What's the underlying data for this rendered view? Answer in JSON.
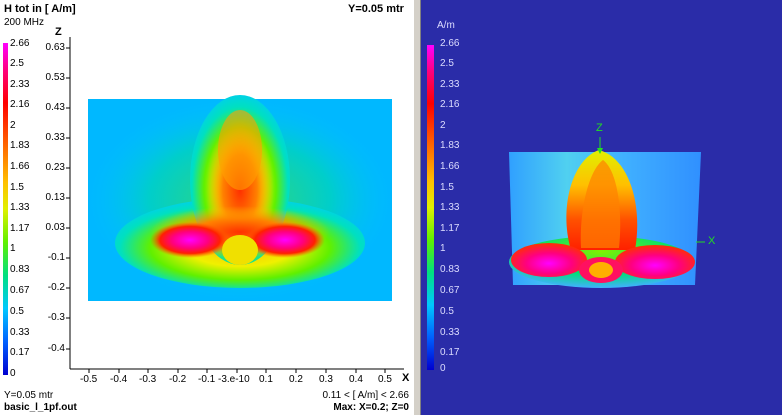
{
  "left_view": {
    "title": "H tot in [ A/m]",
    "frequency": "200 MHz",
    "y_position": "Y=0.05 mtr",
    "z_axis_label": "Z",
    "x_axis_label": "X",
    "z_ticks": [
      "0.63",
      "0.53",
      "0.43",
      "0.33",
      "0.23",
      "0.13",
      "0.03",
      "-0.1",
      "-0.2",
      "-0.3",
      "-0.4"
    ],
    "x_ticks": [
      "-0.5",
      "-0.4",
      "-0.3",
      "-0.2",
      "-0.1",
      "-3.e-10",
      "0.1",
      "0.2",
      "0.3",
      "0.4",
      "0.5"
    ],
    "colorbar_ticks": [
      "2.66",
      "2.5",
      "2.33",
      "2.16",
      "2",
      "1.83",
      "1.66",
      "1.5",
      "1.33",
      "1.17",
      "1",
      "0.83",
      "0.67",
      "0.5",
      "0.33",
      "0.17",
      "0"
    ],
    "footer_y": "Y=0.05 mtr",
    "filename": "basic_l_1pf.out",
    "range_text": "0.11 < [ A/m] < 2.66",
    "max_text": "Max: X=0.2; Z=0"
  },
  "right_view": {
    "unit": "A/m",
    "colorbar_ticks": [
      "2.66",
      "2.5",
      "2.33",
      "2.16",
      "2",
      "1.83",
      "1.66",
      "1.5",
      "1.33",
      "1.17",
      "1",
      "0.83",
      "0.67",
      "0.5",
      "0.33",
      "0.17",
      "0"
    ],
    "axis_z": "Z",
    "axis_x": "X"
  },
  "colors": {
    "background_3d": "#2a2ca8",
    "axis_green": "#22dd22",
    "colormap": [
      "#0000d0",
      "#0060ff",
      "#00c8ff",
      "#00e0c0",
      "#00e060",
      "#60f000",
      "#c8f000",
      "#f0f000",
      "#ffc000",
      "#ff8000",
      "#ff4000",
      "#ff0000",
      "#ff0080",
      "#ff00ff"
    ]
  }
}
